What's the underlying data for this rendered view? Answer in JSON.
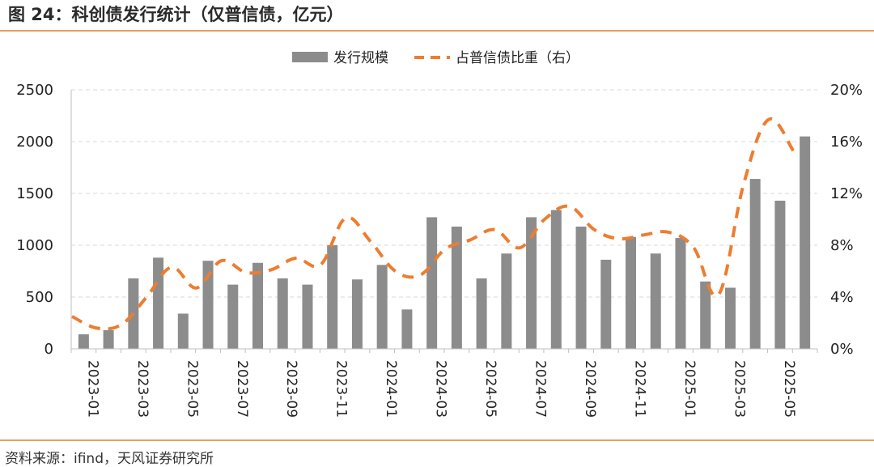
{
  "header": {
    "title": "图 24：科创债发行统计（仅普信债，亿元）"
  },
  "footer": {
    "source": "资料来源：ifind，天风证券研究所"
  },
  "chart_data": {
    "type": "bar",
    "categories": [
      "2023-01",
      "2023-02",
      "2023-03",
      "2023-04",
      "2023-05",
      "2023-06",
      "2023-07",
      "2023-08",
      "2023-09",
      "2023-10",
      "2023-11",
      "2023-12",
      "2024-01",
      "2024-02",
      "2024-03",
      "2024-04",
      "2024-05",
      "2024-06",
      "2024-07",
      "2024-08",
      "2024-09",
      "2024-10",
      "2024-11",
      "2024-12",
      "2025-01",
      "2025-02",
      "2025-03",
      "2025-04",
      "2025-05",
      "2025-06"
    ],
    "x_tick_labels": [
      "2023-01",
      "2023-03",
      "2023-05",
      "2023-07",
      "2023-09",
      "2023-11",
      "2024-01",
      "2024-03",
      "2024-05",
      "2024-07",
      "2024-09",
      "2024-11",
      "2025-01",
      "2025-03",
      "2025-05"
    ],
    "series": [
      {
        "name": "发行规模",
        "type": "bar",
        "axis": "left",
        "color": "#8c8c8c",
        "values": [
          140,
          180,
          680,
          880,
          340,
          850,
          620,
          830,
          680,
          620,
          1000,
          670,
          810,
          380,
          1270,
          1180,
          680,
          920,
          1270,
          1340,
          1180,
          860,
          1080,
          920,
          1070,
          650,
          590,
          1640,
          1430,
          2050
        ]
      },
      {
        "name": "占普信债比重（右）",
        "type": "line",
        "style": "dashed",
        "axis": "right",
        "color": "#ed7d31",
        "values": [
          2.5,
          1.6,
          1.9,
          4.0,
          6.3,
          4.7,
          6.8,
          5.9,
          6.1,
          7.0,
          6.5,
          10.1,
          8.3,
          6.0,
          5.7,
          7.7,
          8.4,
          9.2,
          7.8,
          10.0,
          11.0,
          9.2,
          8.5,
          8.8,
          9.0,
          7.8,
          4.2,
          12.7,
          17.7,
          15.3
        ]
      }
    ],
    "y_left": {
      "min": 0,
      "max": 2500,
      "ticks": [
        "0",
        "500",
        "1000",
        "1500",
        "2000",
        "2500"
      ]
    },
    "y_right": {
      "min": 0,
      "max": 20,
      "ticks": [
        "0%",
        "4%",
        "8%",
        "12%",
        "16%",
        "20%"
      ]
    },
    "grid": "horizontal-dashed",
    "legend_position": "top-center"
  }
}
